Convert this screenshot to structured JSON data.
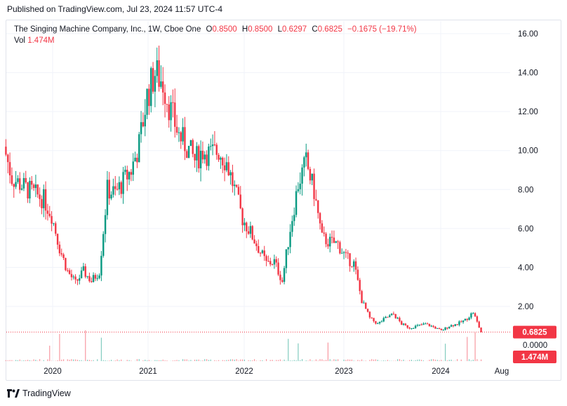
{
  "published": "Published on TradingView.com, Jul 23, 2024 11:57 UTC-4",
  "legend": {
    "symbol": "The Singing Machine Company, Inc., 1W, Cboe One",
    "o_label": "O",
    "o": "0.8500",
    "h_label": "H",
    "h": "0.8500",
    "l_label": "L",
    "l": "0.6297",
    "c_label": "C",
    "c": "0.6825",
    "change": "−0.1675 (−19.71%)",
    "vol_label": "Vol",
    "vol": "1.474M"
  },
  "brand": "TradingView",
  "colors": {
    "up": "#089981",
    "down": "#f23645",
    "grid": "#f0f3fa",
    "price_line": "#f23645"
  },
  "chart_data": {
    "type": "candlestick",
    "price_axis": {
      "ticks": [
        2,
        4,
        6,
        8,
        10,
        12,
        14,
        16
      ],
      "tick_labels": [
        "2.00",
        "4.00",
        "6.00",
        "8.00",
        "10.00",
        "12.00",
        "14.00",
        "16.00"
      ],
      "range": [
        -0.8,
        16.8
      ]
    },
    "volume_axis_label": "0.0000",
    "time_axis": [
      "2020",
      "2021",
      "2022",
      "2023",
      "2024",
      "Aug"
    ],
    "last_price": "0.6825",
    "last_volume": "1.474M",
    "price_path": [
      [
        "2019-07",
        10.2
      ],
      [
        "2019-08",
        8.6
      ],
      [
        "2019-10",
        8.0
      ],
      [
        "2019-12",
        7.5
      ],
      [
        "2020-01",
        6.7
      ],
      [
        "2020-02",
        5.0
      ],
      [
        "2020-03",
        3.8
      ],
      [
        "2020-04",
        3.2
      ],
      [
        "2020-05",
        3.8
      ],
      [
        "2020-06",
        3.3
      ],
      [
        "2020-07",
        3.8
      ],
      [
        "2020-08",
        8.0
      ],
      [
        "2020-09",
        7.8
      ],
      [
        "2020-10",
        8.4
      ],
      [
        "2020-11",
        9.0
      ],
      [
        "2020-12",
        10.3
      ],
      [
        "2021-01",
        12.8
      ],
      [
        "2021-02",
        14.0
      ],
      [
        "2021-03",
        13.5
      ],
      [
        "2021-04",
        12.0
      ],
      [
        "2021-05",
        10.8
      ],
      [
        "2021-06",
        10.2
      ],
      [
        "2021-07",
        9.5
      ],
      [
        "2021-08",
        10.0
      ],
      [
        "2021-09",
        9.8
      ],
      [
        "2021-10",
        10.0
      ],
      [
        "2021-11",
        9.4
      ],
      [
        "2021-12",
        8.0
      ],
      [
        "2022-01",
        6.5
      ],
      [
        "2022-02",
        5.8
      ],
      [
        "2022-03",
        5.0
      ],
      [
        "2022-04",
        4.2
      ],
      [
        "2022-05",
        4.3
      ],
      [
        "2022-06",
        3.3
      ],
      [
        "2022-07",
        6.0
      ],
      [
        "2022-08",
        8.3
      ],
      [
        "2022-09",
        9.4
      ],
      [
        "2022-10",
        7.9
      ],
      [
        "2022-11",
        5.5
      ],
      [
        "2022-12",
        5.3
      ],
      [
        "2023-01",
        5.2
      ],
      [
        "2023-02",
        4.5
      ],
      [
        "2023-03",
        4.2
      ],
      [
        "2023-04",
        2.3
      ],
      [
        "2023-05",
        1.4
      ],
      [
        "2023-06",
        1.1
      ],
      [
        "2023-07",
        1.4
      ],
      [
        "2023-08",
        1.6
      ],
      [
        "2023-09",
        1.1
      ],
      [
        "2023-10",
        0.9
      ],
      [
        "2023-11",
        1.0
      ],
      [
        "2023-12",
        1.1
      ],
      [
        "2024-01",
        0.95
      ],
      [
        "2024-02",
        0.75
      ],
      [
        "2024-03",
        1.0
      ],
      [
        "2024-04",
        1.1
      ],
      [
        "2024-05",
        1.3
      ],
      [
        "2024-06",
        1.7
      ],
      [
        "2024-07",
        0.68
      ]
    ]
  }
}
